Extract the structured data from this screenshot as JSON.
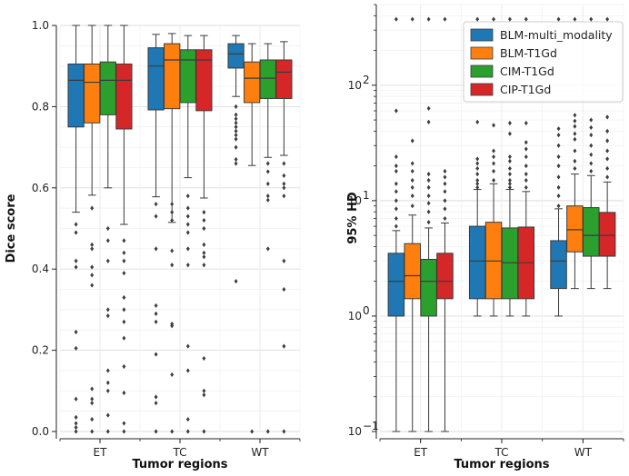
{
  "chart_data": [
    {
      "type": "box",
      "title": "",
      "xlabel": "Tumor regions",
      "ylabel": "Dice score",
      "yscale": "linear",
      "ylim": [
        0.0,
        1.0
      ],
      "yticks": [
        0.0,
        0.2,
        0.4,
        0.6,
        0.8,
        1.0
      ],
      "ytick_labels": [
        "0.0",
        "0.2",
        "0.4",
        "0.6",
        "0.8",
        "1.0"
      ],
      "categories": [
        "ET",
        "TC",
        "WT"
      ],
      "series": [
        {
          "name": "BLM-multi_modality",
          "color": "#1f77b4",
          "boxes": [
            {
              "whislo": 0.54,
              "q1": 0.75,
              "med": 0.865,
              "q3": 0.905,
              "whishi": 1.0,
              "fliers": [
                0.51,
                0.49,
                0.42,
                0.405,
                0.245,
                0.205,
                0.08,
                0.035,
                0.02,
                0.01,
                0.0
              ]
            },
            {
              "whislo": 0.578,
              "q1": 0.792,
              "med": 0.9,
              "q3": 0.945,
              "whishi": 0.978,
              "fliers": [
                0.56,
                0.53,
                0.45,
                0.31,
                0.29,
                0.27,
                0.19,
                0.085,
                0.07,
                0.0
              ]
            },
            {
              "whislo": 0.825,
              "q1": 0.895,
              "med": 0.93,
              "q3": 0.955,
              "whishi": 0.975,
              "fliers": [
                0.8,
                0.78,
                0.77,
                0.76,
                0.75,
                0.74,
                0.73,
                0.72,
                0.7,
                0.67,
                0.66,
                0.37
              ]
            }
          ]
        },
        {
          "name": "BLM-T1Gd",
          "color": "#ff7f0e",
          "boxes": [
            {
              "whislo": 0.582,
              "q1": 0.76,
              "med": 0.86,
              "q3": 0.905,
              "whishi": 1.0,
              "fliers": [
                0.55,
                0.46,
                0.45,
                0.405,
                0.385,
                0.36,
                0.105,
                0.08,
                0.07,
                0.03,
                0.0
              ]
            },
            {
              "whislo": 0.515,
              "q1": 0.795,
              "med": 0.915,
              "q3": 0.955,
              "whishi": 0.98,
              "fliers": [
                0.56,
                0.54,
                0.52,
                0.445,
                0.41,
                0.265,
                0.26,
                0.14,
                0.0
              ]
            },
            {
              "whislo": 0.655,
              "q1": 0.81,
              "med": 0.87,
              "q3": 0.91,
              "whishi": 0.955,
              "fliers": [
                0.0
              ]
            }
          ]
        },
        {
          "name": "CIM-T1Gd",
          "color": "#2ca02c",
          "boxes": [
            {
              "whislo": 0.6,
              "q1": 0.78,
              "med": 0.865,
              "q3": 0.91,
              "whishi": 1.0,
              "fliers": [
                0.5,
                0.47,
                0.42,
                0.3,
                0.285,
                0.15,
                0.12,
                0.1,
                0.04,
                0.0
              ]
            },
            {
              "whislo": 0.625,
              "q1": 0.81,
              "med": 0.915,
              "q3": 0.94,
              "whishi": 0.975,
              "fliers": [
                0.58,
                0.55,
                0.53,
                0.51,
                0.49,
                0.45,
                0.41,
                0.21,
                0.15,
                0.03,
                0.0
              ]
            },
            {
              "whislo": 0.675,
              "q1": 0.82,
              "med": 0.87,
              "q3": 0.915,
              "whishi": 0.955,
              "fliers": [
                0.66,
                0.64,
                0.61,
                0.58,
                0.57,
                0.45,
                0.0
              ]
            }
          ]
        },
        {
          "name": "CIP-T1Gd",
          "color": "#d62728",
          "boxes": [
            {
              "whislo": 0.51,
              "q1": 0.745,
              "med": 0.865,
              "q3": 0.905,
              "whishi": 1.0,
              "fliers": [
                0.47,
                0.44,
                0.42,
                0.39,
                0.33,
                0.3,
                0.27,
                0.23,
                0.16,
                0.095,
                0.02,
                0.0
              ]
            },
            {
              "whislo": 0.575,
              "q1": 0.79,
              "med": 0.915,
              "q3": 0.94,
              "whishi": 0.975,
              "fliers": [
                0.54,
                0.52,
                0.5,
                0.46,
                0.44,
                0.43,
                0.41,
                0.18,
                0.1,
                0.09,
                0.0
              ]
            },
            {
              "whislo": 0.68,
              "q1": 0.82,
              "med": 0.885,
              "q3": 0.915,
              "whishi": 0.96,
              "fliers": [
                0.66,
                0.63,
                0.61,
                0.6,
                0.58,
                0.42,
                0.35,
                0.21,
                0.0
              ]
            }
          ]
        }
      ]
    },
    {
      "type": "box",
      "title": "",
      "xlabel": "Tumor regions",
      "ylabel": "95% HD",
      "yscale": "log",
      "ylim": [
        0.1,
        500
      ],
      "yticks": [
        0.1,
        1,
        10,
        100
      ],
      "ytick_labels": [
        "10",
        "10",
        "10",
        "10"
      ],
      "ytick_exponents": [
        "−1",
        "0",
        "1",
        "2"
      ],
      "categories": [
        "ET",
        "TC",
        "WT"
      ],
      "legend": {
        "location": "upper right",
        "entries": [
          "BLM-multi_modality",
          "BLM-T1Gd",
          "CIM-T1Gd",
          "CIP-T1Gd"
        ]
      },
      "series": [
        {
          "name": "BLM-multi_modality",
          "color": "#1f77b4",
          "boxes": [
            {
              "whislo": 0.1,
              "q1": 1.0,
              "med": 2.0,
              "q3": 3.5,
              "whishi": 5.5,
              "fliers": [
                6.0,
                7.0,
                8.5,
                10,
                12,
                14,
                18,
                20,
                24,
                60,
                373
              ]
            },
            {
              "whislo": 1.0,
              "q1": 1.414,
              "med": 3.0,
              "q3": 6.0,
              "whishi": 12.5,
              "fliers": [
                13,
                14,
                15,
                17,
                19,
                21,
                23,
                48,
                373
              ]
            },
            {
              "whislo": 1.0,
              "q1": 1.732,
              "med": 3.0,
              "q3": 4.5,
              "whishi": 8.5,
              "fliers": [
                9,
                11,
                13,
                16,
                20,
                24,
                30,
                37,
                42,
                373
              ]
            }
          ]
        },
        {
          "name": "BLM-T1Gd",
          "color": "#ff7f0e",
          "boxes": [
            {
              "whislo": 0.1,
              "q1": 1.414,
              "med": 2.236,
              "q3": 4.243,
              "whishi": 7.5,
              "fliers": [
                9,
                11,
                13,
                15,
                18,
                21,
                33,
                373
              ]
            },
            {
              "whislo": 1.0,
              "q1": 1.414,
              "med": 3.0,
              "q3": 6.5,
              "whishi": 14,
              "fliers": [
                15,
                18,
                21,
                24,
                27,
                45,
                373
              ]
            },
            {
              "whislo": 1.732,
              "q1": 3.6,
              "med": 5.6,
              "q3": 9.0,
              "whishi": 17,
              "fliers": [
                19,
                22,
                27,
                34,
                38,
                44,
                49,
                55,
                373
              ]
            }
          ]
        },
        {
          "name": "CIM-T1Gd",
          "color": "#2ca02c",
          "boxes": [
            {
              "whislo": 0.1,
              "q1": 1.0,
              "med": 2.0,
              "q3": 3.1,
              "whishi": 5.8,
              "fliers": [
                6.5,
                8.0,
                9.5,
                11,
                13,
                15,
                17,
                48,
                63,
                373
              ]
            },
            {
              "whislo": 1.0,
              "q1": 1.414,
              "med": 2.9,
              "q3": 5.8,
              "whishi": 12.5,
              "fliers": [
                13,
                14,
                15,
                17,
                19,
                22,
                24,
                38,
                47,
                373
              ]
            },
            {
              "whislo": 1.732,
              "q1": 3.3,
              "med": 5.0,
              "q3": 8.7,
              "whishi": 16.5,
              "fliers": [
                18,
                21,
                25,
                30,
                37,
                43,
                50,
                373
              ]
            }
          ]
        },
        {
          "name": "CIP-T1Gd",
          "color": "#d62728",
          "boxes": [
            {
              "whislo": 0.1,
              "q1": 1.414,
              "med": 2.0,
              "q3": 3.5,
              "whishi": 6.4,
              "fliers": [
                7.0,
                8.5,
                10,
                12,
                14,
                16,
                18,
                373
              ]
            },
            {
              "whislo": 1.0,
              "q1": 1.414,
              "med": 2.9,
              "q3": 5.9,
              "whishi": 12,
              "fliers": [
                13,
                15,
                17,
                20,
                24,
                28,
                32,
                47,
                373
              ]
            },
            {
              "whislo": 1.732,
              "q1": 3.3,
              "med": 5.0,
              "q3": 7.9,
              "whishi": 14.5,
              "fliers": [
                16,
                19,
                23,
                27,
                33,
                40,
                53,
                373
              ]
            }
          ]
        }
      ]
    }
  ]
}
